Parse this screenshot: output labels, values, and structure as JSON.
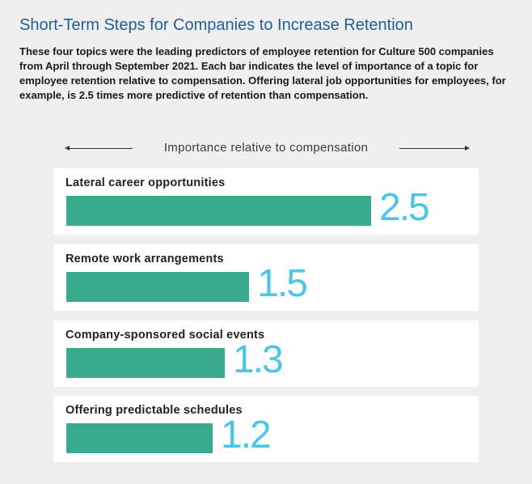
{
  "title": "Short-Term Steps for Companies to Increase Retention",
  "subtitle": "These four topics were the leading predictors of employee retention for Culture 500 companies from April through September 2021. Each bar indicates the level of importance of a topic for employee retention relative to compensation. Offering lateral job opportunities for employees, for example, is 2.5 times more predictive of retention than compensation.",
  "colors": {
    "bar": "#3aab8e",
    "value_text": "#4cc6e6",
    "title": "#1f5f99"
  },
  "chart_data": {
    "type": "bar",
    "orientation": "horizontal",
    "title": "Short-Term Steps for Companies to Increase Retention",
    "xlabel": "Importance relative to compensation",
    "ylabel": "",
    "categories": [
      "Lateral career opportunities",
      "Remote work arrangements",
      "Company-sponsored social events",
      "Offering predictable schedules"
    ],
    "values": [
      2.5,
      1.5,
      1.3,
      1.2
    ],
    "value_labels": [
      "2.5",
      "1.5",
      "1.3",
      "1.2"
    ],
    "xlim": [
      0,
      2.5
    ],
    "grid": false,
    "legend": "none"
  }
}
